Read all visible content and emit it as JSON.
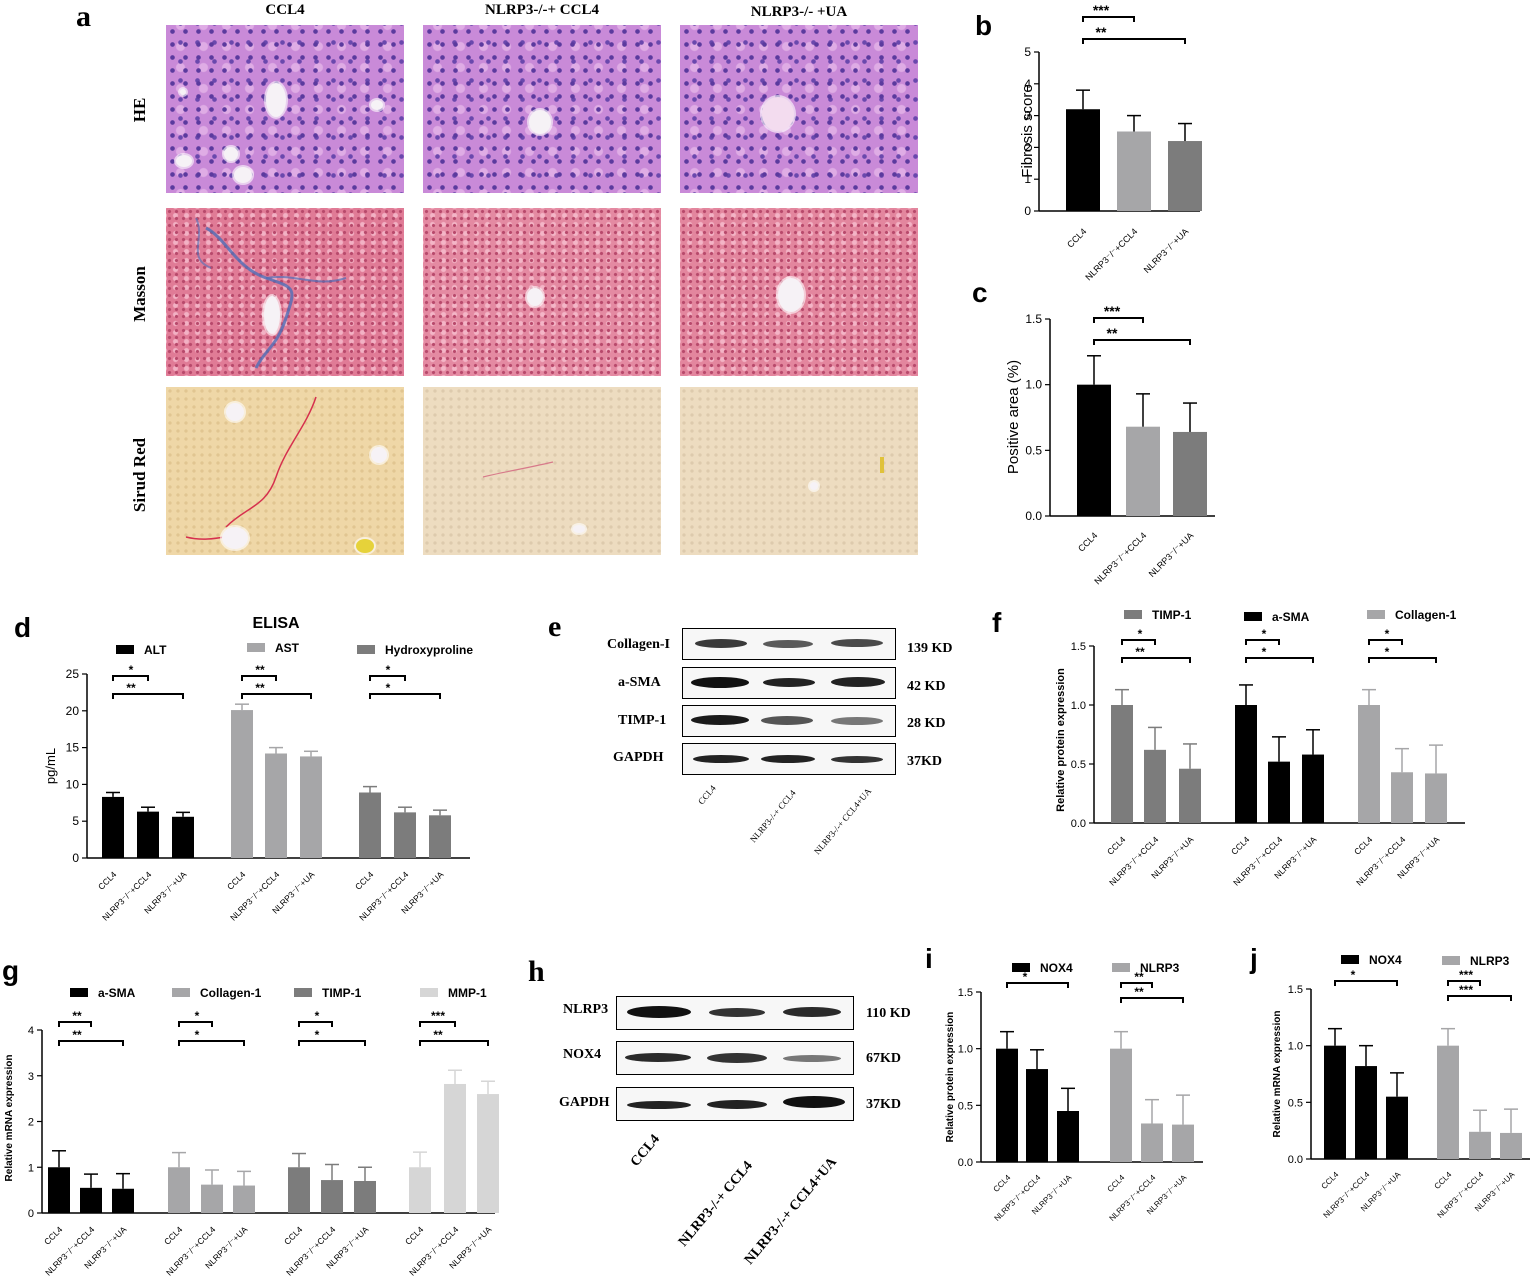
{
  "panel_a": {
    "letter": "a",
    "column_titles": [
      "CCL4",
      "NLRP3-/-+ CCL4",
      "NLRP3-/- +UA"
    ],
    "row_labels": [
      "HE",
      "Masson",
      "Sirud Red"
    ]
  },
  "panel_e": {
    "letter": "e",
    "proteins": [
      "Collagen-I",
      "a-SMA",
      "TIMP-1",
      "GAPDH"
    ],
    "sizes": [
      "139 KD",
      "42 KD",
      "28 KD",
      "37KD"
    ],
    "lanes": [
      "CCL4",
      "NLRP3-/-+ CCL4",
      "NLRP3-/-+ CCL4+UA"
    ]
  },
  "panel_h": {
    "letter": "h",
    "proteins": [
      "NLRP3",
      "NOX4",
      "GAPDH"
    ],
    "sizes": [
      "110 KD",
      "67KD",
      "37KD"
    ],
    "lanes": [
      "CCL4",
      "NLRP3-/-+ CCL4",
      "NLRP3-/-+ CCL4+UA"
    ]
  },
  "chart_data": [
    {
      "panel": "b",
      "type": "bar",
      "categories": [
        "CCL4",
        "NLRP3⁻/⁻+CCL4",
        "NLRP3⁻/⁻+UA"
      ],
      "values": [
        3.2,
        2.5,
        2.2
      ],
      "errors": [
        0.6,
        0.5,
        0.55
      ],
      "ylabel": "Fibrosis score",
      "ylim": [
        0,
        5
      ],
      "yticks": [
        0,
        1,
        2,
        3,
        4,
        5
      ],
      "colors": [
        "#000000",
        "#a6a6a8",
        "#7c7c7c"
      ],
      "significance": [
        {
          "from": 0,
          "to": 1,
          "label": "***"
        },
        {
          "from": 0,
          "to": 2,
          "label": "**"
        }
      ]
    },
    {
      "panel": "c",
      "type": "bar",
      "categories": [
        "CCL4",
        "NLRP3⁻/⁻+CCL4",
        "NLRP3⁻/⁻+UA"
      ],
      "values": [
        1.0,
        0.68,
        0.64
      ],
      "errors": [
        0.22,
        0.25,
        0.22
      ],
      "ylabel": "Positive area (%)",
      "ylim": [
        0,
        1.5
      ],
      "yticks": [
        0.0,
        0.5,
        1.0,
        1.5
      ],
      "colors": [
        "#000000",
        "#a6a6a8",
        "#7c7c7c"
      ],
      "significance": [
        {
          "from": 0,
          "to": 1,
          "label": "***"
        },
        {
          "from": 0,
          "to": 2,
          "label": "**"
        }
      ]
    },
    {
      "panel": "d",
      "type": "bar",
      "title": "ELISA",
      "categories": [
        "CCL4",
        "NLRP3⁻/⁻+CCL4",
        "NLRP3⁻/⁻+UA"
      ],
      "ylabel": "pg/mL",
      "ylim": [
        0,
        25
      ],
      "yticks": [
        0,
        5,
        10,
        15,
        20,
        25
      ],
      "series": [
        {
          "name": "ALT",
          "values": [
            8.3,
            6.3,
            5.6
          ],
          "errors": [
            0.6,
            0.6,
            0.6
          ],
          "color": "#000000",
          "significance": [
            {
              "from": 0,
              "to": 1,
              "label": "*"
            },
            {
              "from": 0,
              "to": 2,
              "label": "**"
            }
          ]
        },
        {
          "name": "AST",
          "values": [
            20.1,
            14.2,
            13.8
          ],
          "errors": [
            0.8,
            0.8,
            0.7
          ],
          "color": "#a6a6a8",
          "significance": [
            {
              "from": 0,
              "to": 1,
              "label": "**"
            },
            {
              "from": 0,
              "to": 2,
              "label": "**"
            }
          ]
        },
        {
          "name": "Hydroxyproline",
          "values": [
            8.9,
            6.2,
            5.8
          ],
          "errors": [
            0.8,
            0.7,
            0.7
          ],
          "color": "#7c7c7c",
          "significance": [
            {
              "from": 0,
              "to": 1,
              "label": "*"
            },
            {
              "from": 0,
              "to": 2,
              "label": "*"
            }
          ]
        }
      ]
    },
    {
      "panel": "f",
      "type": "bar",
      "categories": [
        "CCL4",
        "NLRP3⁻/⁻+CCL4",
        "NLRP3⁻/⁻+UA"
      ],
      "ylabel": "Relative  protein expression",
      "ylim": [
        0,
        1.5
      ],
      "yticks": [
        0.0,
        0.5,
        1.0,
        1.5
      ],
      "series": [
        {
          "name": "TIMP-1",
          "values": [
            1.0,
            0.62,
            0.46
          ],
          "errors": [
            0.13,
            0.19,
            0.21
          ],
          "color": "#7c7c7c",
          "significance": [
            {
              "from": 0,
              "to": 1,
              "label": "*"
            },
            {
              "from": 0,
              "to": 2,
              "label": "**"
            }
          ]
        },
        {
          "name": "a-SMA",
          "values": [
            1.0,
            0.52,
            0.58
          ],
          "errors": [
            0.17,
            0.21,
            0.21
          ],
          "color": "#000000",
          "significance": [
            {
              "from": 0,
              "to": 1,
              "label": "*"
            },
            {
              "from": 0,
              "to": 2,
              "label": "*"
            }
          ]
        },
        {
          "name": "Collagen-1",
          "values": [
            1.0,
            0.43,
            0.42
          ],
          "errors": [
            0.13,
            0.2,
            0.24
          ],
          "color": "#a6a6a8",
          "significance": [
            {
              "from": 0,
              "to": 1,
              "label": "*"
            },
            {
              "from": 0,
              "to": 2,
              "label": "*"
            }
          ]
        }
      ]
    },
    {
      "panel": "g",
      "type": "bar",
      "categories": [
        "CCL4",
        "NLRP3⁻/⁻+CCL4",
        "NLRP3⁻/⁻+UA"
      ],
      "ylabel": "Relative mRNA expression",
      "ylim": [
        0,
        4
      ],
      "yticks": [
        0,
        1,
        2,
        3,
        4
      ],
      "series": [
        {
          "name": "a-SMA",
          "values": [
            1.0,
            0.55,
            0.53
          ],
          "errors": [
            0.36,
            0.3,
            0.33
          ],
          "color": "#000000",
          "significance": [
            {
              "from": 0,
              "to": 1,
              "label": "**"
            },
            {
              "from": 0,
              "to": 2,
              "label": "**"
            }
          ]
        },
        {
          "name": "Collagen-1",
          "values": [
            1.0,
            0.62,
            0.6
          ],
          "errors": [
            0.32,
            0.32,
            0.31
          ],
          "color": "#a6a6a8",
          "significance": [
            {
              "from": 0,
              "to": 1,
              "label": "*"
            },
            {
              "from": 0,
              "to": 2,
              "label": "*"
            }
          ]
        },
        {
          "name": "TIMP-1",
          "values": [
            1.0,
            0.72,
            0.7
          ],
          "errors": [
            0.3,
            0.34,
            0.3
          ],
          "color": "#7c7c7c",
          "significance": [
            {
              "from": 0,
              "to": 1,
              "label": "*"
            },
            {
              "from": 0,
              "to": 2,
              "label": "*"
            }
          ]
        },
        {
          "name": "MMP-1",
          "values": [
            1.0,
            2.82,
            2.6
          ],
          "errors": [
            0.33,
            0.3,
            0.28
          ],
          "color": "#d6d6d6",
          "significance": [
            {
              "from": 0,
              "to": 1,
              "label": "***"
            },
            {
              "from": 0,
              "to": 2,
              "label": "**"
            }
          ]
        }
      ]
    },
    {
      "panel": "i",
      "type": "bar",
      "categories": [
        "CCL4",
        "NLRP3⁻/⁻+CCL4",
        "NLRP3⁻/⁻+UA"
      ],
      "ylabel": "Relative  protein expression",
      "ylim": [
        0,
        1.5
      ],
      "yticks": [
        0.0,
        0.5,
        1.0,
        1.5
      ],
      "series": [
        {
          "name": "NOX4",
          "values": [
            1.0,
            0.82,
            0.45
          ],
          "errors": [
            0.15,
            0.17,
            0.2
          ],
          "color": "#000000",
          "significance": [
            {
              "from": 0,
              "to": 2,
              "label": "*"
            }
          ]
        },
        {
          "name": "NLRP3",
          "values": [
            1.0,
            0.34,
            0.33
          ],
          "errors": [
            0.15,
            0.21,
            0.26
          ],
          "color": "#a6a6a8",
          "significance": [
            {
              "from": 0,
              "to": 1,
              "label": "**"
            },
            {
              "from": 0,
              "to": 2,
              "label": "**"
            }
          ]
        }
      ]
    },
    {
      "panel": "j",
      "type": "bar",
      "categories": [
        "CCL4",
        "NLRP3⁻/⁻+CCL4",
        "NLRP3⁻/⁻+UA"
      ],
      "ylabel": "Relative mRNA expression",
      "ylim": [
        0,
        1.5
      ],
      "yticks": [
        0.0,
        0.5,
        1.0,
        1.5
      ],
      "series": [
        {
          "name": "NOX4",
          "values": [
            1.0,
            0.82,
            0.55
          ],
          "errors": [
            0.15,
            0.18,
            0.21
          ],
          "color": "#000000",
          "significance": [
            {
              "from": 0,
              "to": 2,
              "label": "*"
            }
          ]
        },
        {
          "name": "NLRP3",
          "values": [
            1.0,
            0.24,
            0.23
          ],
          "errors": [
            0.15,
            0.19,
            0.21
          ],
          "color": "#a6a6a8",
          "significance": [
            {
              "from": 0,
              "to": 1,
              "label": "***"
            },
            {
              "from": 0,
              "to": 2,
              "label": "***"
            }
          ]
        }
      ]
    }
  ]
}
